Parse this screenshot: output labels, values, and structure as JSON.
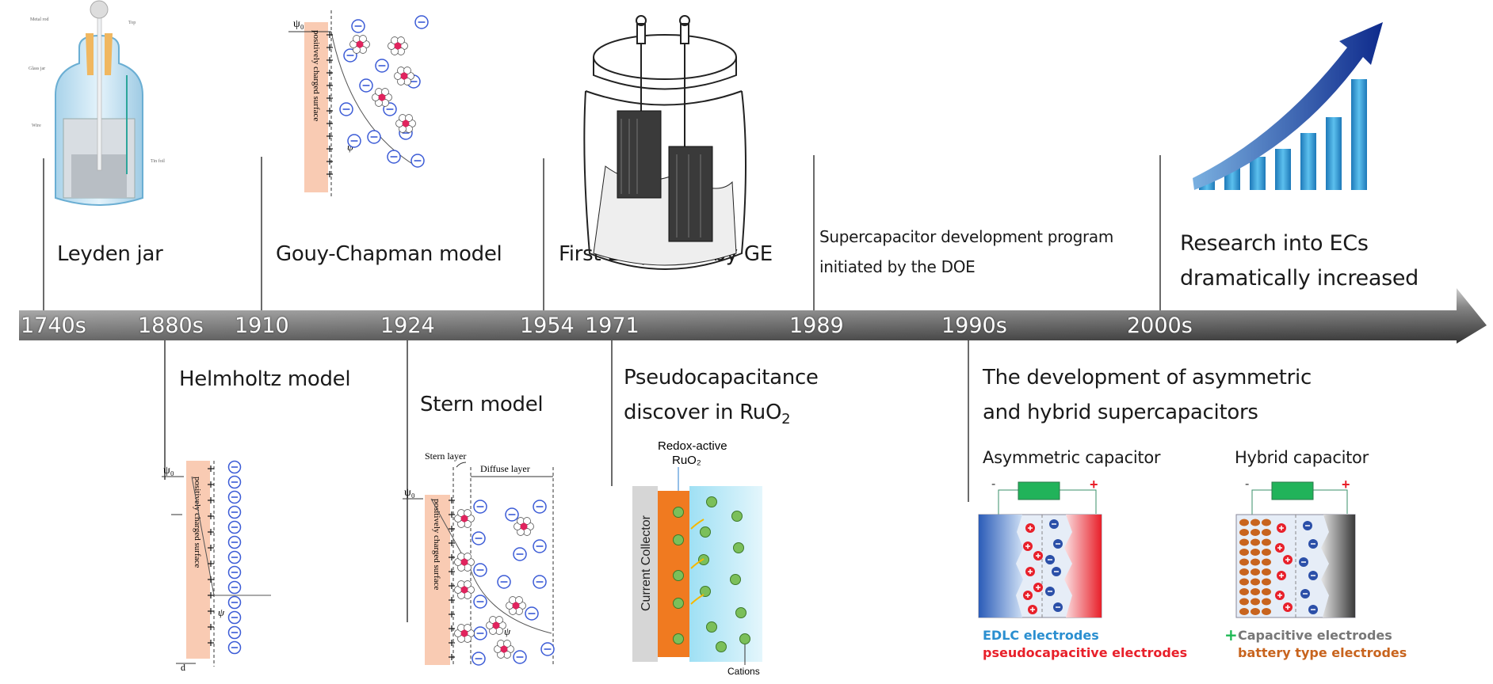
{
  "timeline": {
    "years": [
      "1740s",
      "1880s",
      "1910",
      "1924",
      "1954",
      "1971",
      "1989",
      "1990s",
      "2000s"
    ]
  },
  "events_top": {
    "leyden": "Leyden jar",
    "gouy": "Gouy-Chapman model",
    "patent": "First EC patent by GE",
    "doe_line1": "Supercapacitor development program",
    "doe_line2": "initiated by the DOE",
    "research_line1": "Research into ECs",
    "research_line2": "dramatically increased"
  },
  "events_bottom": {
    "helmholtz": "Helmholtz model",
    "stern": "Stern model",
    "pseudo_line1": "Pseudocapacitance",
    "pseudo_line2": "discover in RuO",
    "pseudo_sub": "2",
    "hybrid_line1": "The development of asymmetric",
    "hybrid_line2": "and hybrid supercapacitors",
    "asym_title": "Asymmetric capacitor",
    "hybrid_title": "Hybrid capacitor"
  },
  "legends": {
    "edlc": "EDLC electrodes",
    "pseudocap": "pseudocapacitive electrodes",
    "plus": "+",
    "capacitive": "Capacitive electrodes",
    "battery": "battery type electrodes"
  },
  "figure_labels": {
    "leyden": {
      "rod": "Metal rod",
      "top": "Top",
      "glass": "Glass jar",
      "wire": "Wire",
      "foil": "Tin foil"
    },
    "psi0": "ψ₀",
    "psi": "ψ",
    "surface": "positively charged surface",
    "d": "d",
    "stern_layer": "Stern layer",
    "diffuse_layer": "Diffuse layer",
    "redox_line1": "Redox-active",
    "redox_line2": "RuO₂",
    "collector": "Current Collector",
    "cations": "Cations",
    "minus": "-",
    "plus": "+"
  },
  "colors": {
    "edlc": "#2b8fd0",
    "pseudocap": "#e8202a",
    "capacitive": "#777777",
    "battery": "#c8641e",
    "plus_green": "#1db954"
  }
}
